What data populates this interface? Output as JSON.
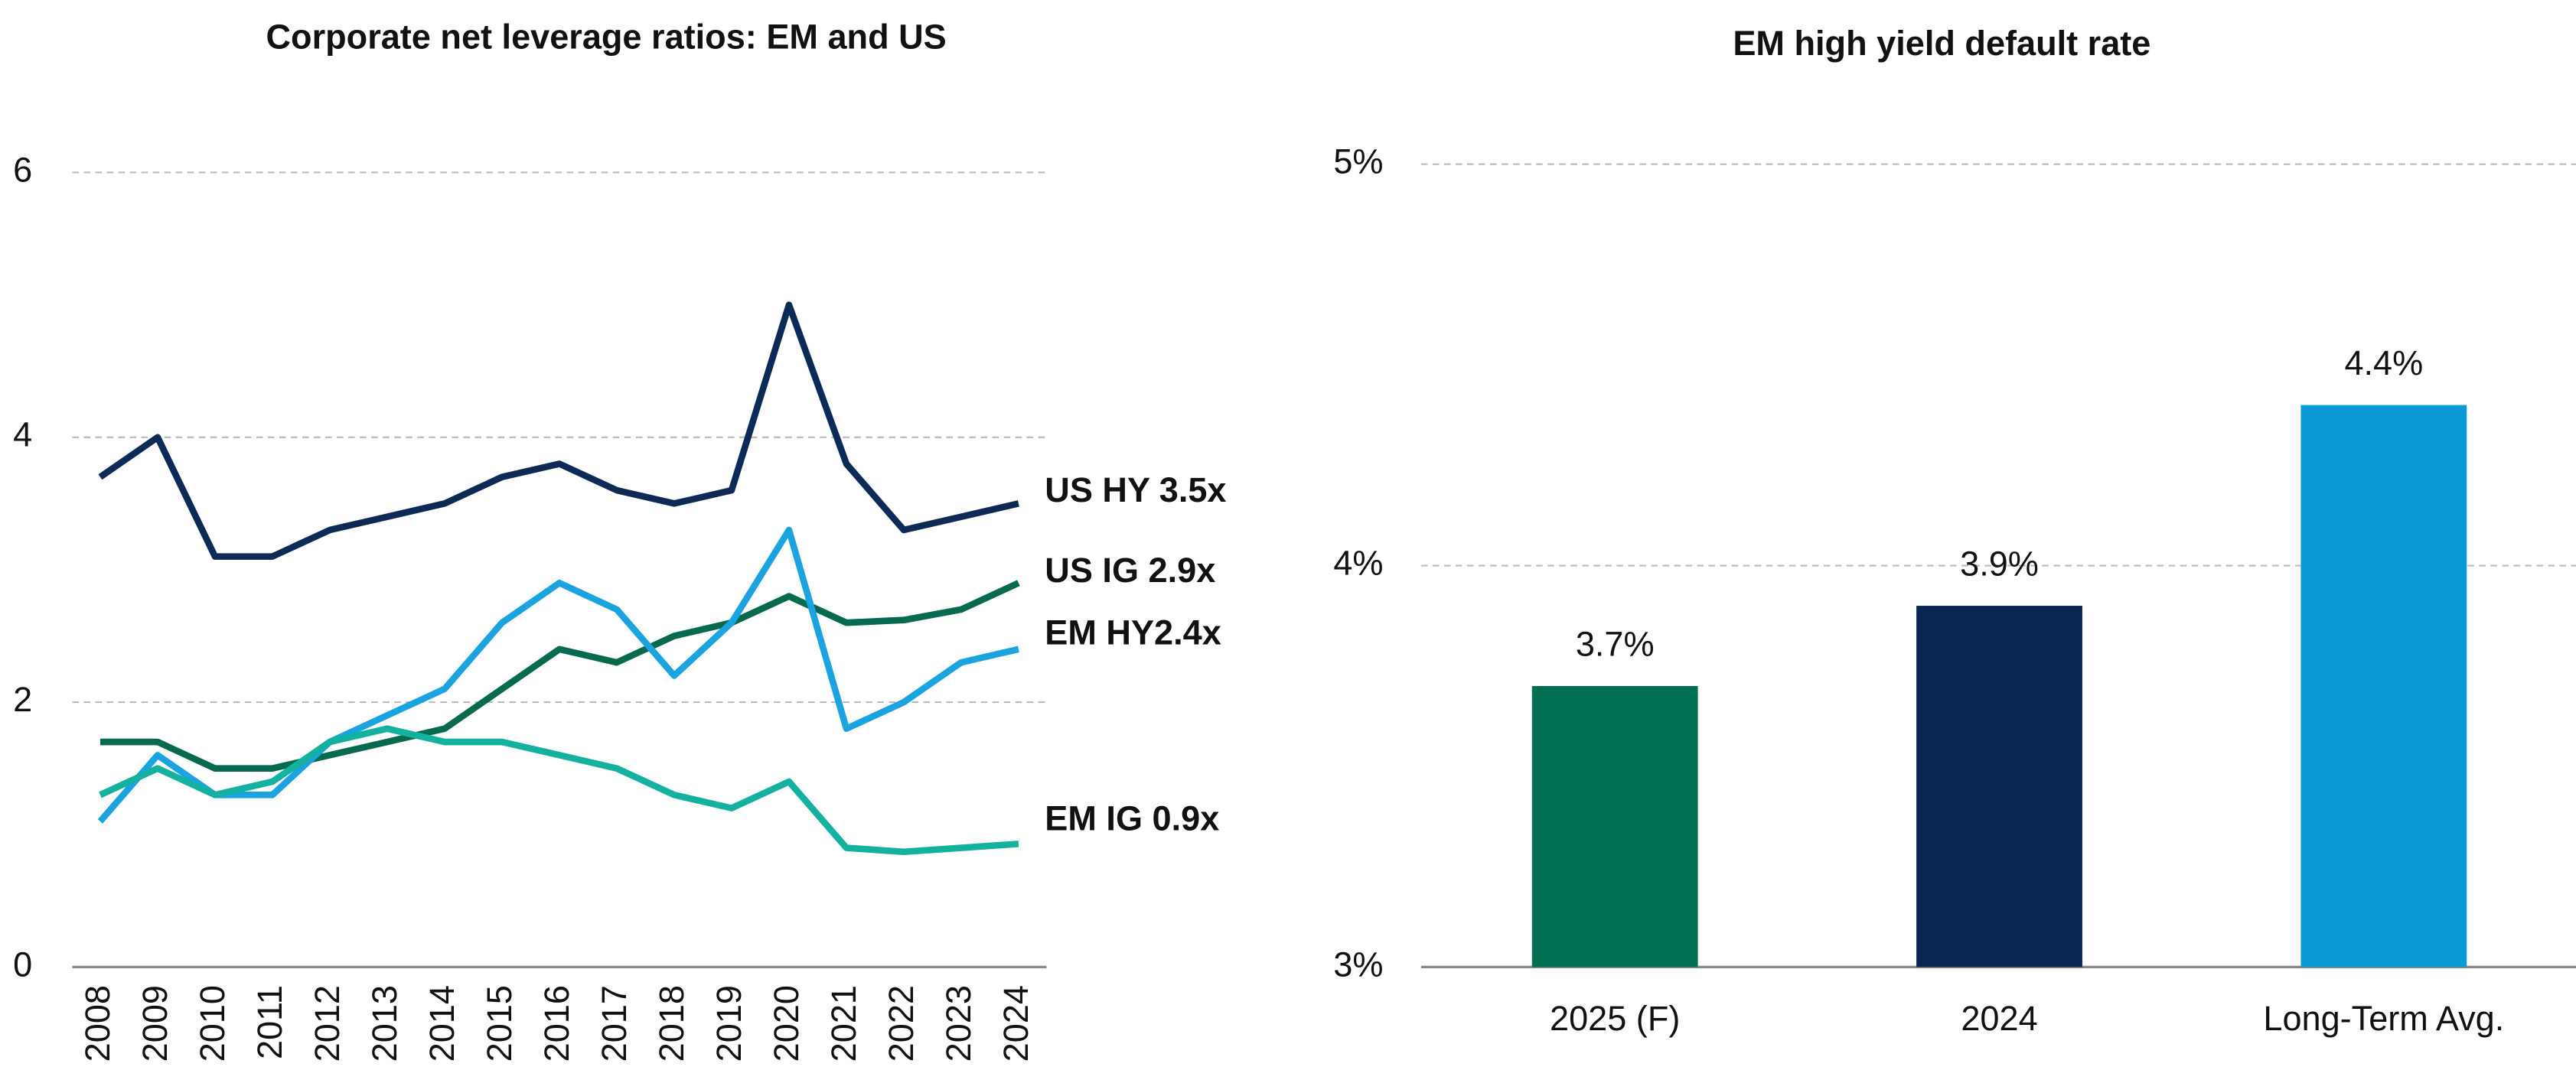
{
  "chart_data": [
    {
      "type": "line",
      "title": "Corporate net leverage ratios: EM and US",
      "categories": [
        "2008",
        "2009",
        "2010",
        "2011",
        "2012",
        "2013",
        "2014",
        "2015",
        "2016",
        "2017",
        "2018",
        "2019",
        "2020",
        "2021",
        "2022",
        "2023",
        "2024"
      ],
      "series": [
        {
          "name": "US HY 3.5x",
          "color": "#0d2a57",
          "values": [
            3.7,
            4.0,
            3.1,
            3.1,
            3.3,
            3.4,
            3.5,
            3.7,
            3.8,
            3.6,
            3.5,
            3.6,
            5.0,
            3.8,
            3.3,
            3.4,
            3.5
          ]
        },
        {
          "name": "US IG 2.9x",
          "color": "#076a4f",
          "values": [
            1.7,
            1.7,
            1.5,
            1.5,
            1.6,
            1.7,
            1.8,
            2.1,
            2.4,
            2.3,
            2.5,
            2.6,
            2.8,
            2.6,
            2.62,
            2.7,
            2.9
          ]
        },
        {
          "name": "EM HY2.4x",
          "color": "#1ba3e0",
          "values": [
            1.1,
            1.6,
            1.3,
            1.3,
            1.7,
            1.9,
            2.1,
            2.6,
            2.9,
            2.7,
            2.2,
            2.6,
            3.3,
            1.8,
            2.0,
            2.3,
            2.4
          ]
        },
        {
          "name": "EM IG 0.9x",
          "color": "#14b0a0",
          "values": [
            1.3,
            1.5,
            1.3,
            1.4,
            1.7,
            1.8,
            1.7,
            1.7,
            1.6,
            1.5,
            1.3,
            1.2,
            1.4,
            0.9,
            0.87,
            0.9,
            0.93
          ]
        }
      ],
      "ylim": [
        0,
        6.5
      ],
      "yticks": [
        0,
        2,
        4,
        6
      ],
      "grid": true
    },
    {
      "type": "bar",
      "title": "EM high yield default rate",
      "categories": [
        "2025 (F)",
        "2024",
        "Long-Term Avg."
      ],
      "values": [
        3.7,
        3.9,
        4.4
      ],
      "value_labels": [
        "3.7%",
        "3.9%",
        "4.4%"
      ],
      "colors": [
        "#006e50",
        "#0a2552",
        "#0a9ad8"
      ],
      "ylim": [
        3,
        5.1
      ],
      "yticks": [
        {
          "value": 3,
          "label": "3%"
        },
        {
          "value": 4,
          "label": "4%"
        },
        {
          "value": 5,
          "label": "5%"
        }
      ],
      "grid": true
    }
  ]
}
